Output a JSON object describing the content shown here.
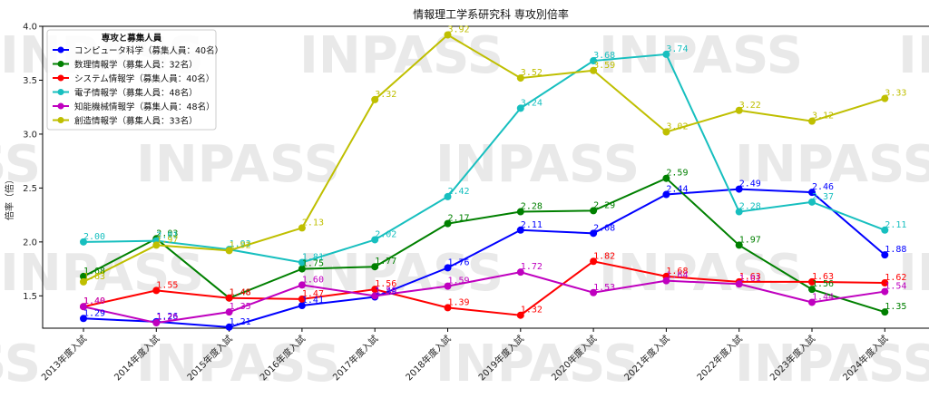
{
  "chart_data": {
    "type": "line",
    "title": "情報理工学系研究科 専攻別倍率",
    "xlabel": "",
    "ylabel": "倍率（倍）",
    "ylim": [
      1.2,
      4.0
    ],
    "yticks": [
      "1.5",
      "2.0",
      "2.5",
      "3.0",
      "3.5",
      "4.0"
    ],
    "ytick_values": [
      1.5,
      2.0,
      2.5,
      3.0,
      3.5,
      4.0
    ],
    "grid": false,
    "legend_title": "専攻と募集人員",
    "legend_position": "top-left",
    "watermark": "INPASS",
    "categories": [
      "2013年度入試",
      "2014年度入試",
      "2015年度入試",
      "2016年度入試",
      "2017年度入試",
      "2018年度入試",
      "2019年度入試",
      "2020年度入試",
      "2021年度入試",
      "2022年度入試",
      "2023年度入試",
      "2024年度入試"
    ],
    "series": [
      {
        "name": "コンピュータ科学（募集人員：40名）",
        "color": "#0000ff",
        "values": [
          1.29,
          1.26,
          1.21,
          1.41,
          1.49,
          1.76,
          2.11,
          2.08,
          2.44,
          2.49,
          2.46,
          1.88
        ],
        "labels": [
          "1.29",
          "1.26",
          "1.21",
          "1.41",
          "1.49",
          "1.76",
          "2.11",
          "2.08",
          "2.44",
          "2.49",
          "2.46",
          "1.88"
        ]
      },
      {
        "name": "数理情報学（募集人員：32名）",
        "color": "#008000",
        "values": [
          1.68,
          2.03,
          1.48,
          1.75,
          1.77,
          2.17,
          2.28,
          2.29,
          2.59,
          1.97,
          1.56,
          1.35
        ],
        "labels": [
          "1.68",
          "2.03",
          "1.48",
          "1.75",
          "1.77",
          "2.17",
          "2.28",
          "2.29",
          "2.59",
          "1.97",
          "1.56",
          "1.35"
        ]
      },
      {
        "name": "システム情報学（募集人員：40名）",
        "color": "#ff0000",
        "values": [
          1.4,
          1.55,
          1.48,
          1.47,
          1.56,
          1.39,
          1.32,
          1.82,
          1.68,
          1.63,
          1.63,
          1.62
        ],
        "labels": [
          "1.40",
          "1.55",
          "1.48",
          "1.47",
          "1.56",
          "1.39",
          "1.32",
          "1.82",
          "1.68",
          "1.63",
          "1.63",
          "1.62"
        ]
      },
      {
        "name": "電子情報学（募集人員：48名）",
        "color": "#17bfbf",
        "values": [
          2.0,
          2.01,
          1.93,
          1.81,
          2.02,
          2.42,
          3.24,
          3.68,
          3.74,
          2.28,
          2.37,
          2.11
        ],
        "labels": [
          "2.00",
          "2.01",
          "1.93",
          "1.81",
          "2.02",
          "2.42",
          "3.24",
          "3.68",
          "3.74",
          "2.28",
          "2.37",
          "2.11"
        ]
      },
      {
        "name": "知能機械情報学（募集人員：48名）",
        "color": "#bf00bf",
        "values": [
          1.4,
          1.25,
          1.35,
          1.6,
          1.5,
          1.59,
          1.72,
          1.53,
          1.64,
          1.61,
          1.44,
          1.54
        ],
        "labels": [
          "1.40",
          "1.25",
          "1.35",
          "1.60",
          "1.50",
          "1.59",
          "1.72",
          "1.53",
          "1.64",
          "1.61",
          "1.44",
          "1.54"
        ]
      },
      {
        "name": "創造情報学（募集人員：33名）",
        "color": "#bfbf00",
        "values": [
          1.63,
          1.97,
          1.92,
          2.13,
          3.32,
          3.92,
          3.52,
          3.59,
          3.02,
          3.22,
          3.12,
          3.33
        ],
        "labels": [
          "1.63",
          "1.97",
          "1.92",
          "2.13",
          "3.32",
          "3.92",
          "3.52",
          "3.59",
          "3.02",
          "3.22",
          "3.12",
          "3.33"
        ]
      }
    ]
  }
}
